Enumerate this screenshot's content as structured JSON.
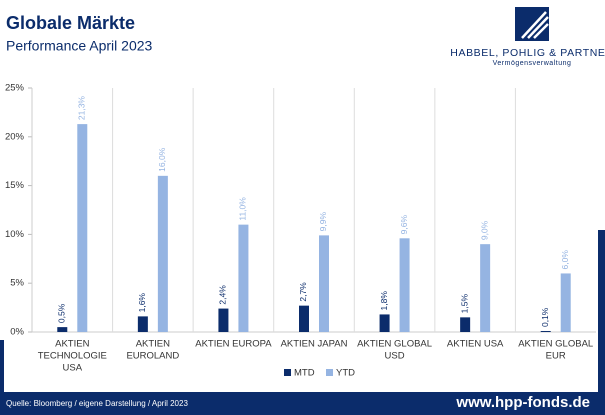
{
  "header": {
    "brand": "HABBEL, POHLIG & PARTNER",
    "tagline": "Vermögensverwaltung"
  },
  "footer": {
    "source": "Quelle: Bloomberg / eigene Darstellung / April 2023",
    "website": "www.hpp-fonds.de"
  },
  "chart_data": {
    "type": "bar",
    "title": "Globale Märkte",
    "subtitle": "Performance April 2023",
    "categories": [
      [
        "AKTIEN",
        "TECHNOLOGIE",
        "USA"
      ],
      [
        "AKTIEN",
        "EUROLAND"
      ],
      [
        "AKTIEN EUROPA"
      ],
      [
        "AKTIEN JAPAN"
      ],
      [
        "AKTIEN GLOBAL",
        "USD"
      ],
      [
        "AKTIEN USA"
      ],
      [
        "AKTIEN GLOBAL",
        "EUR"
      ]
    ],
    "series": [
      {
        "name": "MTD",
        "color": "#0b2c6b",
        "values": [
          0.5,
          1.6,
          2.4,
          2.7,
          1.8,
          1.5,
          0.1
        ],
        "value_labels": [
          "0,5%",
          "1,6%",
          "2,4%",
          "2,7%",
          "1,8%",
          "1,5%",
          "0,1%"
        ]
      },
      {
        "name": "YTD",
        "color": "#95b4e2",
        "values": [
          21.3,
          16.0,
          11.0,
          9.9,
          9.6,
          9.0,
          6.0
        ],
        "value_labels": [
          "21,3%",
          "16,0%",
          "11,0%",
          "9,9%",
          "9,6%",
          "9,0%",
          "6,0%"
        ]
      }
    ],
    "ylim": [
      0,
      25
    ],
    "yticks": [
      {
        "value": 0,
        "label": "0%"
      },
      {
        "value": 5,
        "label": "5%"
      },
      {
        "value": 10,
        "label": "10%"
      },
      {
        "value": 15,
        "label": "15%"
      },
      {
        "value": 20,
        "label": "20%"
      },
      {
        "value": 25,
        "label": "25%"
      }
    ],
    "legend": "bottom"
  }
}
